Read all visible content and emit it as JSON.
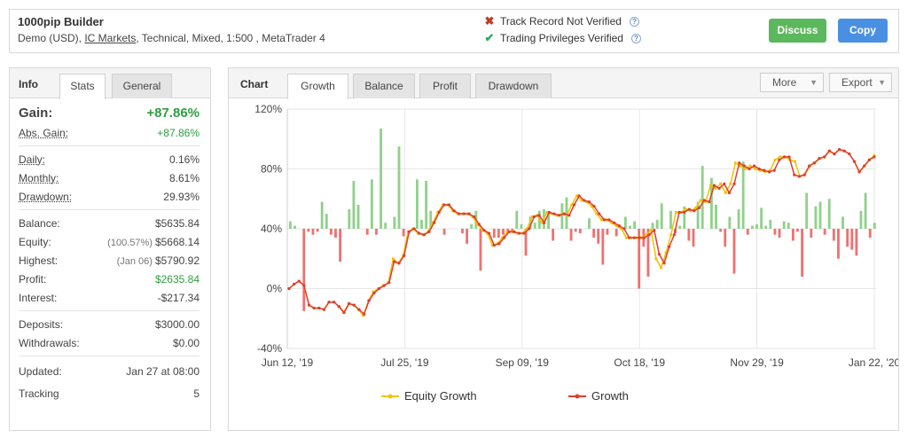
{
  "header": {
    "name": "1000pip Builder",
    "sub_prefix": "Demo (USD), ",
    "broker": "IC Markets",
    "sub_suffix": ", Technical, Mixed, 1:500 , MetaTrader 4",
    "track_record": "Track Record Not Verified",
    "trading_privileges": "Trading Privileges Verified",
    "discuss": "Discuss",
    "copy": "Copy"
  },
  "info": {
    "title": "Info",
    "tabs": [
      "Stats",
      "General"
    ],
    "gain": {
      "label": "Gain:",
      "value": "+87.86%"
    },
    "abs_gain": {
      "label": "Abs. Gain:",
      "value": "+87.86%"
    },
    "daily": {
      "label": "Daily:",
      "value": "0.16%"
    },
    "monthly": {
      "label": "Monthly:",
      "value": "8.61%"
    },
    "drawdown": {
      "label": "Drawdown:",
      "value": "29.93%"
    },
    "balance": {
      "label": "Balance:",
      "value": "$5635.84"
    },
    "equity": {
      "label": "Equity:",
      "note": "(100.57%)",
      "value": "$5668.14"
    },
    "highest": {
      "label": "Highest:",
      "note": "(Jan 06)",
      "value": "$5790.92"
    },
    "profit": {
      "label": "Profit:",
      "value": "$2635.84"
    },
    "interest": {
      "label": "Interest:",
      "value": "-$217.34"
    },
    "deposits": {
      "label": "Deposits:",
      "value": "$3000.00"
    },
    "withdrawals": {
      "label": "Withdrawals:",
      "value": "$0.00"
    },
    "updated": {
      "label": "Updated:",
      "value": "Jan 27 at 08:00"
    },
    "tracking": {
      "label": "Tracking",
      "value": "5"
    }
  },
  "chart_panel": {
    "title": "Chart",
    "tabs": [
      "Growth",
      "Balance",
      "Profit",
      "Drawdown"
    ],
    "more": "More",
    "export": "Export"
  },
  "colors": {
    "accent_green": "#2e9e3f",
    "discuss": "#5cb85c",
    "copy": "#4a90e2",
    "growth": "#e03c31",
    "equity": "#f2c200",
    "bars_pos": "#8fd18a",
    "bars_neg": "#f07070"
  },
  "chart_data": {
    "type": "line",
    "x_ticks": [
      "Jun 12, '19",
      "Jul 25, '19",
      "Sep 09, '19",
      "Oct 18, '19",
      "Nov 29, '19",
      "Jan 22, '20"
    ],
    "y_ticks": [
      "120%",
      "80%",
      "40%",
      "0%",
      "-40%"
    ],
    "ylim": [
      -40,
      120
    ],
    "grid": true,
    "legend_position": "bottom",
    "series": [
      {
        "name": "Equity Growth",
        "values": [
          0,
          3,
          5,
          2,
          -11,
          -13,
          -13,
          -14,
          -9,
          -9,
          -12,
          -16,
          -10,
          -11,
          -14,
          -18,
          -8,
          -2,
          0,
          2,
          4,
          20,
          17,
          22,
          38,
          40,
          37,
          36,
          38,
          44,
          51,
          56,
          56,
          52,
          50,
          50,
          50,
          48,
          43,
          39,
          37,
          29,
          30,
          34,
          38,
          38,
          37,
          37,
          40,
          48,
          49,
          44,
          51,
          50,
          49,
          50,
          49,
          56,
          62,
          59,
          58,
          55,
          50,
          46,
          46,
          44,
          42,
          40,
          34,
          34,
          34,
          34,
          36,
          39,
          20,
          14,
          24,
          36,
          51,
          51,
          53,
          52,
          54,
          59,
          58,
          69,
          67,
          70,
          64,
          70,
          84,
          82,
          80,
          82,
          80,
          79,
          78,
          79,
          86,
          88,
          88,
          86,
          85,
          75,
          76,
          82,
          84,
          87,
          88,
          92,
          90,
          93,
          92,
          90,
          85,
          78,
          82,
          86,
          89
        ]
      },
      {
        "name": "Growth",
        "values": [
          0,
          3,
          5,
          2,
          -11,
          -13,
          -13,
          -14,
          -9,
          -9,
          -12,
          -16,
          -10,
          -11,
          -14,
          -17,
          -8,
          -3,
          0,
          2,
          4,
          18,
          17,
          22,
          38,
          40,
          37,
          36,
          38,
          44,
          51,
          56,
          56,
          52,
          50,
          50,
          50,
          48,
          43,
          39,
          37,
          29,
          30,
          34,
          38,
          38,
          37,
          37,
          40,
          48,
          49,
          44,
          51,
          50,
          49,
          50,
          49,
          56,
          62,
          59,
          58,
          55,
          50,
          46,
          46,
          44,
          42,
          40,
          34,
          34,
          34,
          34,
          36,
          39,
          23,
          17,
          28,
          36,
          51,
          51,
          53,
          52,
          54,
          59,
          58,
          69,
          67,
          70,
          64,
          70,
          84,
          82,
          80,
          82,
          80,
          79,
          78,
          79,
          86,
          88,
          88,
          76,
          75,
          76,
          82,
          84,
          87,
          88,
          92,
          90,
          93,
          92,
          90,
          85,
          78,
          82,
          86,
          88
        ]
      }
    ],
    "bars": [
      5,
      2,
      0,
      -55,
      -2,
      -4,
      -2,
      18,
      10,
      -4,
      -6,
      -22,
      0,
      13,
      32,
      16,
      0,
      -4,
      33,
      -4,
      67,
      4,
      0,
      8,
      55,
      -5,
      0,
      0,
      33,
      6,
      32,
      12,
      0,
      0,
      -4,
      0,
      0,
      0,
      -3,
      -10,
      3,
      12,
      -28,
      0,
      0,
      -6,
      -6,
      -4,
      -2,
      -2,
      12,
      3,
      -18,
      8,
      4,
      12,
      13,
      10,
      -8,
      0,
      17,
      21,
      -8,
      -2,
      -3,
      0,
      7,
      -6,
      -10,
      -24,
      -4,
      0,
      -5,
      0,
      8,
      2,
      5,
      -40,
      -12,
      -32,
      4,
      6,
      17,
      0,
      12,
      -3,
      2,
      15,
      -8,
      -12,
      18,
      42,
      0,
      34,
      16,
      -2,
      -12,
      8,
      -30,
      13,
      45,
      -4,
      2,
      3,
      14,
      2,
      6,
      -4,
      -6,
      5,
      4,
      -8,
      -2,
      -32,
      24,
      -6,
      15,
      18,
      -4,
      20,
      -8,
      -20,
      8,
      -12,
      -14,
      -18,
      12,
      24,
      -6,
      4
    ]
  }
}
